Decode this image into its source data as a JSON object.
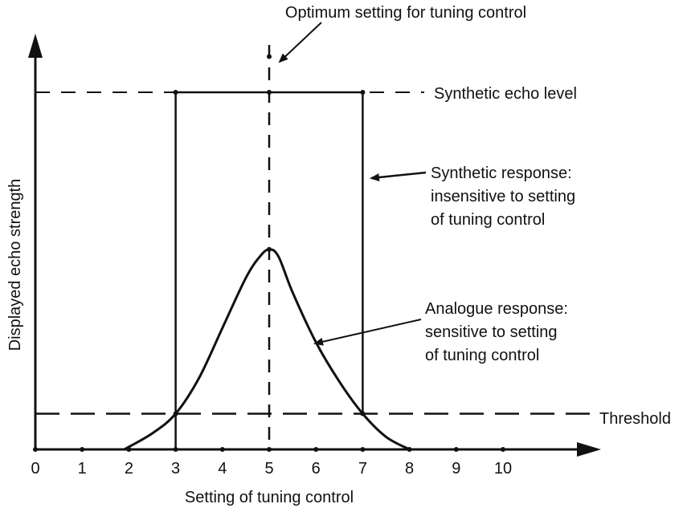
{
  "figure": {
    "ylabel": "Displayed echo strength",
    "xlabel": "Setting of tuning control",
    "optimum_label": "Optimum setting for tuning control",
    "synthetic_level_label": "Synthetic echo level",
    "synthetic_response_label": [
      "Synthetic response:",
      "insensitive to setting",
      "of tuning control"
    ],
    "analogue_response_label": [
      "Analogue response:",
      "sensitive to setting",
      "of tuning control"
    ],
    "threshold_label": "Threshold"
  },
  "chart_data": {
    "type": "line",
    "x_ticks": [
      "0",
      "1",
      "2",
      "3",
      "4",
      "5",
      "6",
      "7",
      "8",
      "9",
      "10"
    ],
    "xlim": [
      0,
      10
    ],
    "optimum_x": 5,
    "threshold": 0.1,
    "synthetic_echo_level": 1.0,
    "synthetic_response": {
      "x": [
        3,
        3,
        7,
        7
      ],
      "y": [
        0,
        1.0,
        1.0,
        0.1
      ]
    },
    "analogue_response": {
      "x": [
        1.9,
        2.5,
        3.0,
        3.5,
        4.0,
        4.5,
        4.8,
        5.0,
        5.2,
        5.5,
        6.0,
        6.5,
        7.0,
        7.5,
        8.0
      ],
      "y": [
        0.0,
        0.045,
        0.1,
        0.2,
        0.34,
        0.48,
        0.54,
        0.56,
        0.54,
        0.44,
        0.3,
        0.19,
        0.1,
        0.035,
        0.0
      ]
    },
    "colors": {
      "ink": "#111111"
    }
  }
}
